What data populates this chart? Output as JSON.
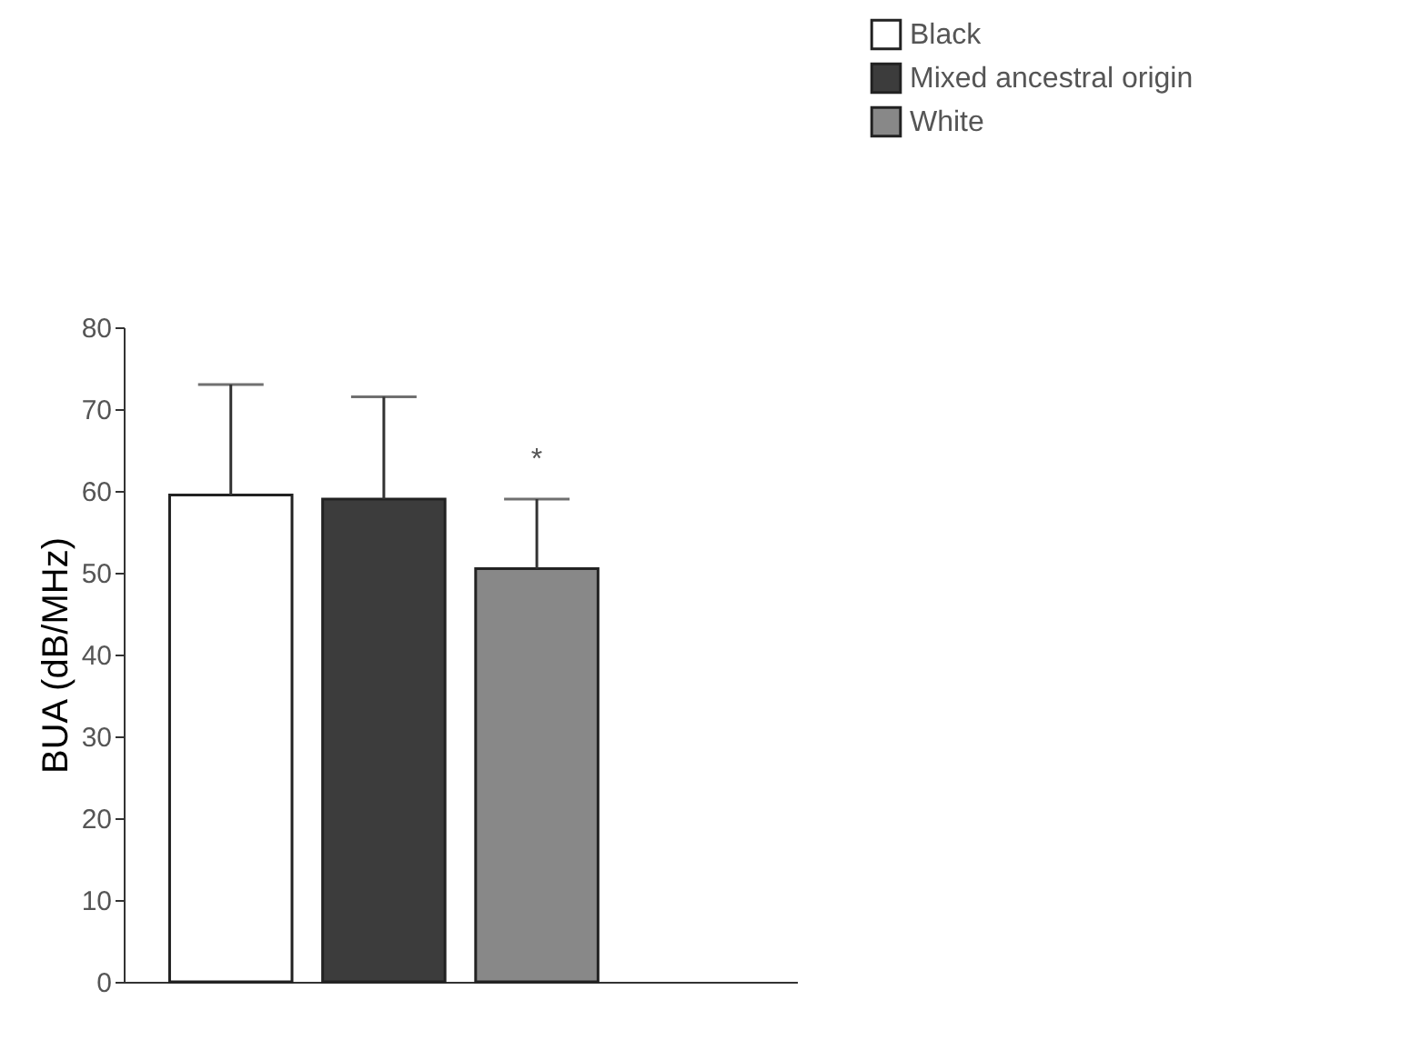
{
  "chart_data": {
    "type": "bar",
    "ylabel": "BUA (dB/MHz)",
    "categories": [
      null
    ],
    "series": [
      {
        "name": "Black",
        "color": "#ffffff",
        "values": [
          59.5
        ],
        "errors": [
          13.5
        ]
      },
      {
        "name": "Mixed ancestral origin",
        "color": "#3c3c3c",
        "values": [
          59
        ],
        "errors": [
          12.5
        ]
      },
      {
        "name": "White",
        "color": "#888888",
        "values": [
          50.5
        ],
        "errors": [
          8.5
        ]
      }
    ],
    "ylim": [
      0,
      80
    ],
    "yticks": [
      0,
      10,
      20,
      30,
      40,
      50,
      60,
      70,
      80
    ],
    "grid": false,
    "legend": "top right",
    "annotations": [
      "*"
    ]
  }
}
